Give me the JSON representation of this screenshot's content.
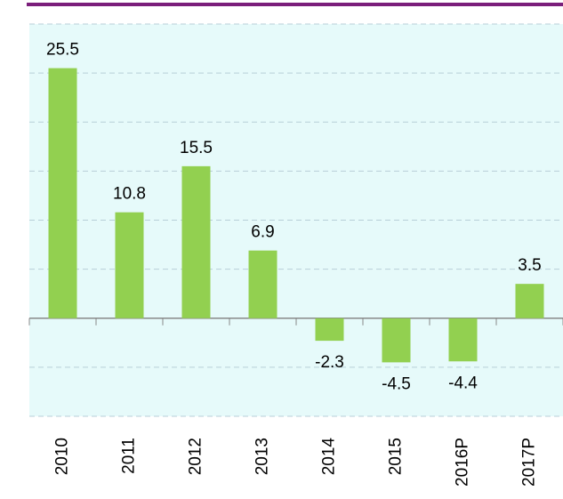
{
  "chart_data": {
    "type": "bar",
    "categories": [
      "2010",
      "2011",
      "2012",
      "2013",
      "2014",
      "2015",
      "2016P",
      "2017P"
    ],
    "values": [
      25.5,
      10.8,
      15.5,
      6.9,
      -2.3,
      -4.5,
      -4.4,
      3.5
    ],
    "color": "#92d050",
    "ylim": [
      -10,
      30
    ],
    "yticks": [
      -10,
      -5,
      0,
      5,
      10,
      15,
      20,
      25,
      30
    ],
    "grid": true
  }
}
